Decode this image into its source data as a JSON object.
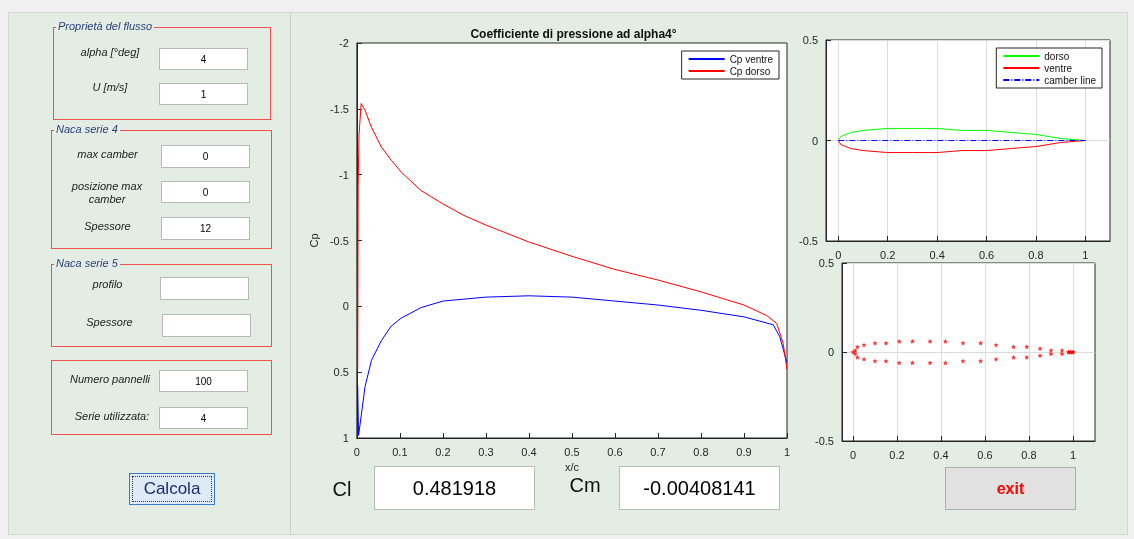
{
  "chart_data": [
    {
      "type": "other",
      "annotations": [
        "Proprietà del flusso",
        "alpha   [°deg]",
        "4",
        "U     [m/s]",
        "1",
        "Naca serie 4",
        "max camber",
        "0",
        "posizione max camber",
        "0",
        "Spessore",
        "12",
        "Naca serie 5",
        "profilo",
        "Spessore",
        "Numero pannelli",
        "100",
        "Serie utilizzata:",
        "4",
        "Calcola",
        "Cl",
        "0.481918",
        "Cm",
        "-0.00408141",
        "exit"
      ]
    },
    {
      "type": "line",
      "title": "Coefficiente di pressione ad alpha4°",
      "xlabel": "x/c",
      "ylabel": "Cp",
      "xlim": [
        0,
        1
      ],
      "xticks": [
        0,
        0.1,
        0.2,
        0.3,
        0.4,
        0.5,
        0.6,
        0.7,
        0.8,
        0.9,
        1
      ],
      "ylim": [
        1,
        -2
      ],
      "yticks": [
        -2,
        -1.5,
        -1,
        -0.5,
        0,
        0.5,
        1
      ],
      "grid": false,
      "legend": "top right",
      "series": [
        {
          "name": "Cp ventre",
          "color": "#0000ff",
          "x": [
            0.002,
            0.004,
            0.011,
            0.019,
            0.034,
            0.057,
            0.08,
            0.103,
            0.149,
            0.2,
            0.3,
            0.4,
            0.5,
            0.6,
            0.7,
            0.8,
            0.9,
            0.968,
            0.983,
            1
          ],
          "values": [
            0.6,
            0.98,
            0.81,
            0.61,
            0.41,
            0.26,
            0.15,
            0.09,
            0.01,
            -0.04,
            -0.07,
            -0.08,
            -0.07,
            -0.04,
            -0.01,
            0.03,
            0.08,
            0.14,
            0.23,
            0.43
          ]
        },
        {
          "name": "Cp dorso",
          "color": "#ff0000",
          "x": [
            0.002,
            0.003,
            0.005,
            0.01,
            0.019,
            0.034,
            0.057,
            0.08,
            0.103,
            0.149,
            0.199,
            0.249,
            0.298,
            0.399,
            0.5,
            0.6,
            0.7,
            0.8,
            0.9,
            0.953,
            0.976,
            0.991,
            1
          ],
          "values": [
            0.48,
            -0.9,
            -1.3,
            -1.54,
            -1.49,
            -1.36,
            -1.21,
            -1.11,
            -1.02,
            -0.88,
            -0.78,
            -0.69,
            -0.62,
            -0.49,
            -0.38,
            -0.28,
            -0.2,
            -0.11,
            -0.01,
            0.07,
            0.13,
            0.28,
            0.48
          ]
        }
      ]
    },
    {
      "type": "line",
      "xlim": [
        -0.05,
        1.1
      ],
      "xticks": [
        0,
        0.2,
        0.4,
        0.6,
        0.8,
        1
      ],
      "ylim": [
        -0.5,
        0.5
      ],
      "yticks": [
        -0.5,
        0,
        0.5
      ],
      "grid": true,
      "legend": "top right",
      "series": [
        {
          "name": "dorso",
          "color": "#00ff00",
          "x": [
            0,
            0.01,
            0.03,
            0.05,
            0.1,
            0.2,
            0.3,
            0.4,
            0.5,
            0.6,
            0.7,
            0.8,
            0.9,
            1
          ],
          "values": [
            0,
            0.02,
            0.03,
            0.04,
            0.05,
            0.06,
            0.06,
            0.06,
            0.05,
            0.05,
            0.04,
            0.03,
            0.01,
            0
          ]
        },
        {
          "name": "ventre",
          "color": "#ff0000",
          "x": [
            0,
            0.01,
            0.03,
            0.05,
            0.1,
            0.2,
            0.3,
            0.4,
            0.5,
            0.6,
            0.7,
            0.8,
            0.9,
            1
          ],
          "values": [
            0,
            -0.02,
            -0.03,
            -0.04,
            -0.05,
            -0.06,
            -0.06,
            -0.06,
            -0.05,
            -0.05,
            -0.04,
            -0.03,
            -0.01,
            0
          ]
        },
        {
          "name": "camber line",
          "color": "#0000ff",
          "line_style": "dashed",
          "x": [
            0,
            1
          ],
          "values": [
            0,
            0
          ]
        }
      ]
    },
    {
      "type": "scatter",
      "xlim": [
        -0.05,
        1.1
      ],
      "xticks": [
        0,
        0.2,
        0.4,
        0.6,
        0.8,
        1
      ],
      "ylim": [
        -0.5,
        0.5
      ],
      "yticks": [
        -0.5,
        0,
        0.5
      ],
      "grid": true,
      "marker": "star",
      "series": [
        {
          "color": "#ff0000",
          "x": [
            1,
            0.99,
            0.98,
            0.95,
            0.9,
            0.85,
            0.79,
            0.73,
            0.65,
            0.58,
            0.5,
            0.42,
            0.35,
            0.27,
            0.21,
            0.15,
            0.1,
            0.05,
            0.02,
            0.01,
            0,
            0.01,
            0.02,
            0.05,
            0.1,
            0.15,
            0.21,
            0.27,
            0.35,
            0.42,
            0.5,
            0.58,
            0.65,
            0.73,
            0.79,
            0.85,
            0.9,
            0.95,
            0.98,
            0.99,
            1
          ],
          "values": [
            0,
            0,
            0,
            -0.01,
            -0.01,
            -0.02,
            -0.03,
            -0.03,
            -0.04,
            -0.05,
            -0.05,
            -0.06,
            -0.06,
            -0.06,
            -0.06,
            -0.05,
            -0.05,
            -0.04,
            -0.03,
            -0.01,
            0,
            0.01,
            0.03,
            0.04,
            0.05,
            0.05,
            0.06,
            0.06,
            0.06,
            0.06,
            0.05,
            0.05,
            0.04,
            0.03,
            0.03,
            0.02,
            0.01,
            0.01,
            0,
            0,
            0
          ]
        }
      ]
    }
  ]
}
